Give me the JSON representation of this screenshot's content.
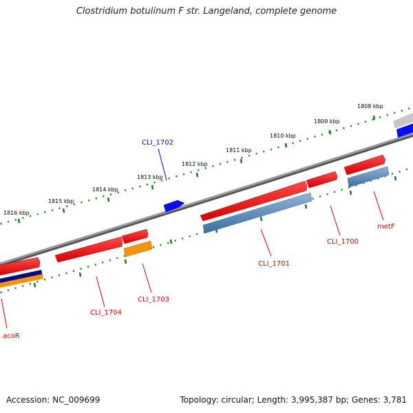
{
  "title": "Clostridium botulinum F str. Langeland, complete genome",
  "footer": {
    "accession": "Accession: NC_009699",
    "topology": "Topology: circular; Length: 3,995,387 bp; Genes: 3,781"
  },
  "colors": {
    "backbone": "#7a7a7a",
    "tick": "#1a7a1a",
    "gene_red": "#e8161b",
    "cds_blue": "#4a7fb0",
    "gene_orange": "#f59310",
    "gene_bright_blue": "#0a0aee",
    "gene_navy": "#0a0a80",
    "gene_grey": "#c0c0c0",
    "label_red": "#cc0000",
    "label_blue": "#0000cc"
  },
  "scale": {
    "ticks": [
      {
        "label": "1808 kbp",
        "kbp": 1808
      },
      {
        "label": "1809 kbp",
        "kbp": 1809
      },
      {
        "label": "1810 kbp",
        "kbp": 1810
      },
      {
        "label": "1811 kbp",
        "kbp": 1811
      },
      {
        "label": "1812 kbp",
        "kbp": 1812
      },
      {
        "label": "1813 kbp",
        "kbp": 1813
      },
      {
        "label": "1814 kbp",
        "kbp": 1814
      },
      {
        "label": "1815 kbp",
        "kbp": 1815
      },
      {
        "label": "1816 kbp",
        "kbp": 1816
      }
    ]
  },
  "genes": [
    {
      "name": "CLI_1702",
      "strand": "+",
      "color": "gene_bright_blue",
      "label_color": "label_blue"
    },
    {
      "name": "CLI_1704",
      "strand": "-",
      "color": "gene_red",
      "label_color": "label_red"
    },
    {
      "name": "CLI_1703",
      "strand": "-",
      "color": "gene_orange",
      "label_color": "label_red"
    },
    {
      "name": "CLI_1701",
      "strand": "-",
      "color": "gene_red",
      "label_color": "label_red"
    },
    {
      "name": "CLI_1700",
      "strand": "-",
      "color": "gene_red",
      "label_color": "label_red"
    },
    {
      "name": "metF",
      "strand": "-",
      "color": "gene_red",
      "label_color": "label_red"
    },
    {
      "name": "acoR",
      "strand": "-",
      "color": "gene_red",
      "label_color": "label_red"
    }
  ]
}
